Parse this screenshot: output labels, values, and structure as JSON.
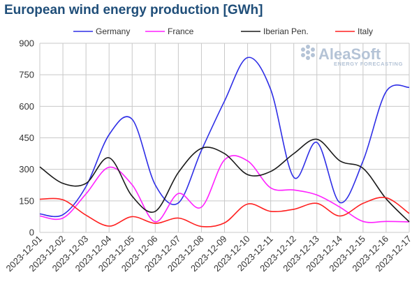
{
  "chart_data": {
    "type": "line",
    "title": "European wind energy production [GWh]",
    "xlabel": "",
    "ylabel": "",
    "ylim": [
      0,
      900
    ],
    "yticks": [
      0,
      150,
      300,
      450,
      600,
      750,
      900
    ],
    "grid": true,
    "legend_position": "top",
    "categories": [
      "2023-12-01",
      "2023-12-02",
      "2023-12-03",
      "2023-12-04",
      "2023-12-05",
      "2023-12-06",
      "2023-12-07",
      "2023-12-08",
      "2023-12-09",
      "2023-12-10",
      "2023-12-11",
      "2023-12-12",
      "2023-12-13",
      "2023-12-14",
      "2023-12-15",
      "2023-12-16",
      "2023-12-17"
    ],
    "series": [
      {
        "name": "Germany",
        "color": "#2e2ee6",
        "values": [
          88,
          84,
          218,
          465,
          538,
          226,
          140,
          390,
          625,
          832,
          680,
          262,
          428,
          142,
          340,
          670,
          690
        ]
      },
      {
        "name": "France",
        "color": "#ff21ff",
        "values": [
          78,
          68,
          183,
          310,
          226,
          50,
          185,
          120,
          345,
          340,
          212,
          202,
          178,
          120,
          52,
          52,
          50
        ]
      },
      {
        "name": "Iberian Pen.",
        "color": "#1a1a1a",
        "values": [
          312,
          233,
          233,
          355,
          172,
          100,
          285,
          400,
          375,
          275,
          290,
          375,
          443,
          340,
          305,
          160,
          50
        ]
      },
      {
        "name": "Italy",
        "color": "#ff2020",
        "values": [
          158,
          155,
          82,
          30,
          75,
          43,
          68,
          28,
          45,
          135,
          100,
          110,
          138,
          78,
          138,
          165,
          90
        ]
      }
    ]
  },
  "watermark": {
    "brand": "AleaSoft",
    "tagline": "ENERGY FORECASTING"
  }
}
